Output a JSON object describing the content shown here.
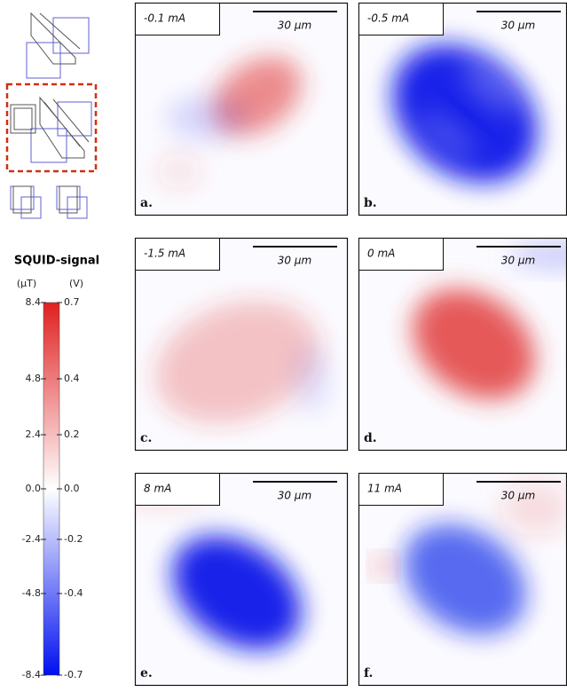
{
  "colorbar": {
    "title": "SQUID-signal",
    "left_unit": "(μT)",
    "right_unit": "(V)",
    "left_ticks": [
      "8.4",
      "4.8",
      "2.4",
      "0.0",
      "-2.4",
      "-4.8",
      "-8.4"
    ],
    "right_ticks": [
      "0.7",
      "0.4",
      "0.2",
      "0.0",
      "-0.2",
      "-0.4",
      "-0.7"
    ]
  },
  "panels": [
    {
      "current": "-0.1 mA",
      "scale": "30 μm",
      "letter": "a."
    },
    {
      "current": "-0.5 mA",
      "scale": "30 μm",
      "letter": "b."
    },
    {
      "current": "-1.5 mA",
      "scale": "30 μm",
      "letter": "c."
    },
    {
      "current": "0 mA",
      "scale": "30 μm",
      "letter": "d."
    },
    {
      "current": "8 mA",
      "scale": "30 μm",
      "letter": "e."
    },
    {
      "current": "11 mA",
      "scale": "30 μm",
      "letter": "f."
    }
  ]
}
